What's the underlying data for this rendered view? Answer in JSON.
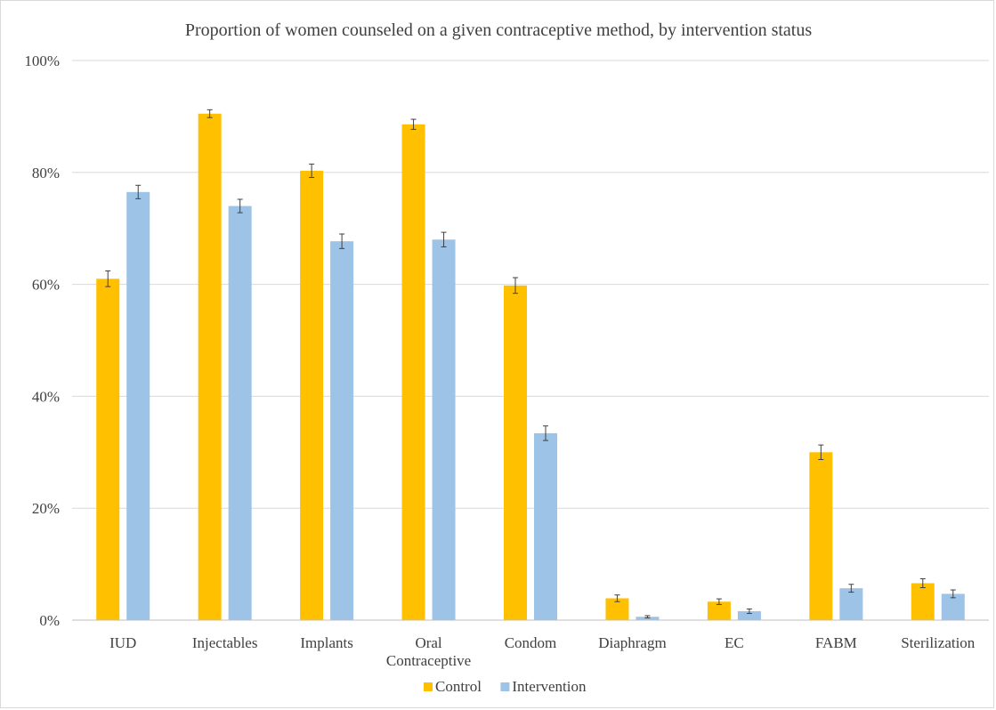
{
  "chart_data": {
    "type": "bar",
    "title": "Proportion of women counseled on a given contraceptive method, by intervention status",
    "xlabel": "",
    "ylabel": "",
    "ylim": [
      0,
      100
    ],
    "yticks": [
      0,
      20,
      40,
      60,
      80,
      100
    ],
    "ytick_labels": [
      "0%",
      "20%",
      "40%",
      "60%",
      "80%",
      "100%"
    ],
    "grid": true,
    "legend_position": "bottom",
    "categories": [
      [
        "IUD"
      ],
      [
        "Injectables"
      ],
      [
        "Implants"
      ],
      [
        "Oral",
        "Contraceptive"
      ],
      [
        "Condom"
      ],
      [
        "Diaphragm"
      ],
      [
        "EC"
      ],
      [
        "FABM"
      ],
      [
        "Sterilization"
      ]
    ],
    "series": [
      {
        "name": "Control",
        "color": "#FFC000",
        "values": [
          61.0,
          90.5,
          80.3,
          88.6,
          59.8,
          3.9,
          3.3,
          30.0,
          6.6
        ],
        "errors": [
          1.4,
          0.7,
          1.2,
          0.9,
          1.4,
          0.6,
          0.5,
          1.3,
          0.8
        ]
      },
      {
        "name": "Intervention",
        "color": "#9DC3E6",
        "values": [
          76.5,
          74.0,
          67.7,
          68.0,
          33.4,
          0.6,
          1.6,
          5.7,
          4.7
        ],
        "errors": [
          1.2,
          1.2,
          1.3,
          1.3,
          1.3,
          0.2,
          0.4,
          0.7,
          0.7
        ]
      }
    ],
    "colors": {
      "grid": "#D9D9D9",
      "axis": "#BFBFBF",
      "error_bar": "#404040",
      "text": "#404040"
    }
  }
}
